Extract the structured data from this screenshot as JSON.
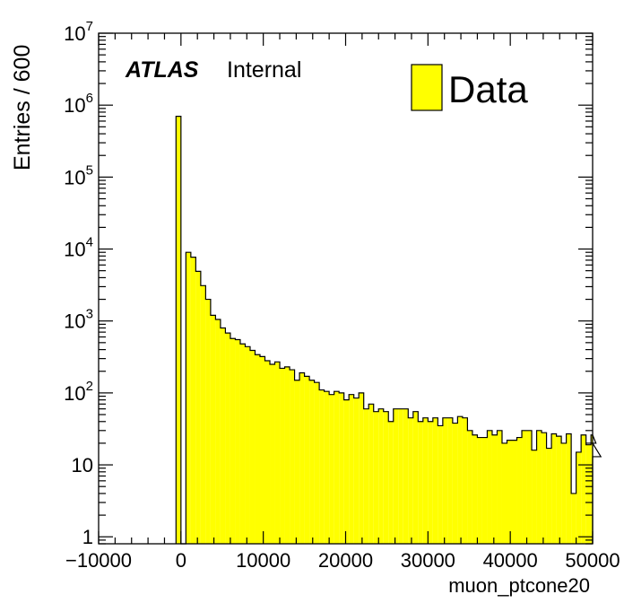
{
  "chart_data": {
    "type": "bar",
    "title": "",
    "xlabel": "muon_ptcone20",
    "ylabel": "Entries / 600",
    "xlim": [
      -10000,
      50000
    ],
    "ylim": [
      0.8,
      10000000
    ],
    "yscale": "log",
    "grid": false,
    "legend_position": "top-right",
    "atlas_label": "ATLAS",
    "atlas_sublabel": "Internal",
    "x_ticks": [
      -10000,
      0,
      10000,
      20000,
      30000,
      40000,
      50000
    ],
    "x_tick_labels": [
      "−10000",
      "0",
      "10000",
      "20000",
      "30000",
      "40000",
      "50000"
    ],
    "y_ticks": [
      {
        "value": 1,
        "base": "1",
        "exp": ""
      },
      {
        "value": 10,
        "base": "10",
        "exp": ""
      },
      {
        "value": 100,
        "base": "10",
        "exp": "2"
      },
      {
        "value": 1000,
        "base": "10",
        "exp": "3"
      },
      {
        "value": 10000,
        "base": "10",
        "exp": "4"
      },
      {
        "value": 100000,
        "base": "10",
        "exp": "5"
      },
      {
        "value": 1000000,
        "base": "10",
        "exp": "6"
      },
      {
        "value": 10000000,
        "base": "10",
        "exp": "7"
      }
    ],
    "fill_color": "#ffff00",
    "line_color": "#000000",
    "series": [
      {
        "name": "Data",
        "bin_width": 600,
        "x_start": -600,
        "values": [
          700000,
          0.8,
          9000,
          7700,
          4900,
          3100,
          2000,
          1200,
          1050,
          800,
          680,
          570,
          550,
          480,
          440,
          390,
          340,
          320,
          280,
          250,
          270,
          220,
          230,
          210,
          150,
          190,
          170,
          150,
          140,
          110,
          105,
          95,
          105,
          100,
          80,
          95,
          85,
          100,
          60,
          70,
          55,
          60,
          55,
          40,
          60,
          60,
          60,
          45,
          55,
          40,
          45,
          40,
          45,
          35,
          45,
          45,
          38,
          47,
          45,
          30,
          26,
          24,
          24,
          30,
          26,
          30,
          20,
          22,
          22,
          24,
          30,
          30,
          16,
          30,
          28,
          17,
          27,
          25,
          20,
          27,
          4,
          15,
          26,
          19,
          26,
          20,
          13
        ]
      }
    ]
  }
}
